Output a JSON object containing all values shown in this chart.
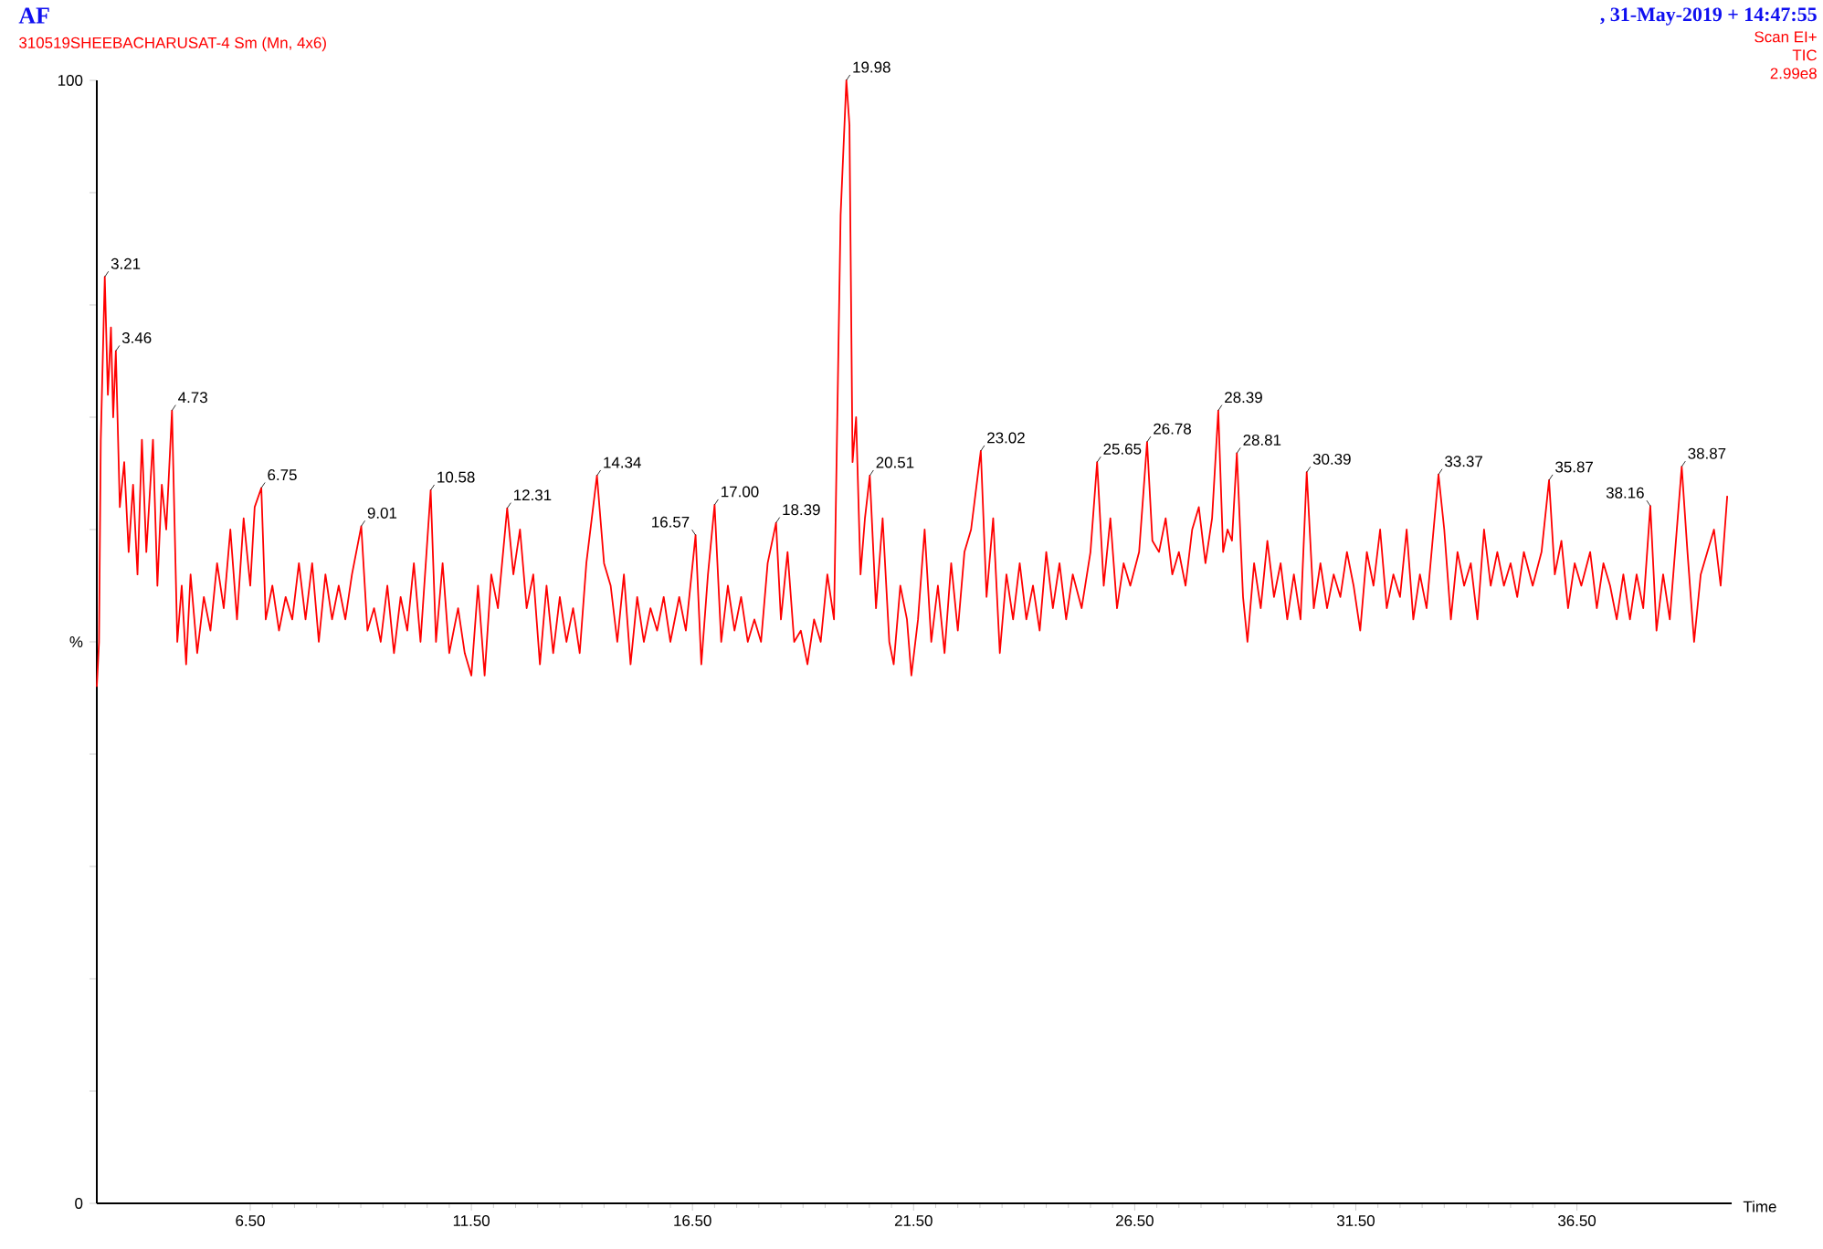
{
  "chart_data": {
    "type": "line",
    "title": "AF",
    "subtitle": "310519SHEEBACHARUSAT-4 Sm (Mn, 4x6)",
    "xlabel": "Time",
    "color": "#ff0000",
    "x": [
      3.03,
      3.08,
      3.12,
      3.21,
      3.28,
      3.35,
      3.4,
      3.46,
      3.55,
      3.65,
      3.75,
      3.85,
      3.95,
      4.05,
      4.15,
      4.3,
      4.4,
      4.5,
      4.6,
      4.73,
      4.85,
      4.95,
      5.05,
      5.15,
      5.3,
      5.45,
      5.6,
      5.75,
      5.9,
      6.05,
      6.2,
      6.35,
      6.5,
      6.6,
      6.75,
      6.85,
      7.0,
      7.15,
      7.3,
      7.45,
      7.6,
      7.75,
      7.9,
      8.05,
      8.2,
      8.35,
      8.5,
      8.65,
      8.8,
      9.01,
      9.15,
      9.3,
      9.45,
      9.6,
      9.75,
      9.9,
      10.05,
      10.2,
      10.35,
      10.58,
      10.7,
      10.85,
      11.0,
      11.2,
      11.35,
      11.5,
      11.65,
      11.8,
      11.95,
      12.1,
      12.31,
      12.45,
      12.6,
      12.75,
      12.9,
      13.05,
      13.2,
      13.35,
      13.5,
      13.65,
      13.8,
      13.95,
      14.1,
      14.34,
      14.5,
      14.65,
      14.8,
      14.95,
      15.1,
      15.25,
      15.4,
      15.55,
      15.7,
      15.85,
      16.0,
      16.2,
      16.35,
      16.57,
      16.7,
      16.85,
      17.0,
      17.15,
      17.3,
      17.45,
      17.6,
      17.75,
      17.9,
      18.05,
      18.2,
      18.39,
      18.5,
      18.65,
      18.8,
      18.95,
      19.1,
      19.25,
      19.4,
      19.55,
      19.7,
      19.85,
      19.98,
      20.05,
      20.12,
      20.2,
      20.3,
      20.4,
      20.51,
      20.65,
      20.8,
      20.95,
      21.05,
      21.2,
      21.35,
      21.45,
      21.6,
      21.75,
      21.9,
      22.05,
      22.2,
      22.35,
      22.5,
      22.65,
      22.8,
      23.02,
      23.15,
      23.3,
      23.45,
      23.6,
      23.75,
      23.9,
      24.05,
      24.2,
      24.35,
      24.5,
      24.65,
      24.8,
      24.95,
      25.1,
      25.3,
      25.5,
      25.65,
      25.8,
      25.95,
      26.1,
      26.25,
      26.4,
      26.6,
      26.78,
      26.9,
      27.05,
      27.2,
      27.35,
      27.5,
      27.65,
      27.8,
      27.95,
      28.1,
      28.25,
      28.39,
      28.5,
      28.6,
      28.7,
      28.81,
      28.95,
      29.05,
      29.2,
      29.35,
      29.5,
      29.65,
      29.8,
      29.95,
      30.1,
      30.25,
      30.39,
      30.55,
      30.7,
      30.85,
      31.0,
      31.15,
      31.3,
      31.45,
      31.6,
      31.75,
      31.9,
      32.05,
      32.2,
      32.35,
      32.5,
      32.65,
      32.8,
      32.95,
      33.1,
      33.37,
      33.5,
      33.65,
      33.8,
      33.95,
      34.1,
      34.25,
      34.4,
      34.55,
      34.7,
      34.85,
      35.0,
      35.15,
      35.3,
      35.5,
      35.7,
      35.87,
      36.0,
      36.15,
      36.3,
      36.45,
      36.6,
      36.8,
      36.95,
      37.1,
      37.25,
      37.4,
      37.55,
      37.7,
      37.85,
      38.0,
      38.16,
      38.3,
      38.45,
      38.6,
      38.87,
      39.0,
      39.15,
      39.3,
      39.45,
      39.6,
      39.75,
      39.9
    ],
    "values": [
      46,
      50,
      68,
      82.5,
      72,
      78,
      70,
      75.9,
      62,
      66,
      58,
      64,
      56,
      68,
      58,
      68,
      55,
      64,
      60,
      70.6,
      50,
      55,
      48,
      56,
      49,
      54,
      51,
      57,
      53,
      60,
      52,
      61,
      55,
      62,
      63.7,
      52,
      55,
      51,
      54,
      52,
      57,
      52,
      57,
      50,
      56,
      52,
      55,
      52,
      56,
      60.3,
      51,
      53,
      50,
      55,
      49,
      54,
      51,
      57,
      50,
      63.5,
      50,
      57,
      49,
      53,
      49,
      47,
      55,
      47,
      56,
      53,
      61.9,
      56,
      60,
      53,
      56,
      48,
      55,
      49,
      54,
      50,
      53,
      49,
      57,
      64.8,
      57,
      55,
      50,
      56,
      48,
      54,
      50,
      53,
      51,
      54,
      50,
      54,
      51,
      59.5,
      48,
      56,
      62.2,
      50,
      55,
      51,
      54,
      50,
      52,
      50,
      57,
      60.6,
      52,
      58,
      50,
      51,
      48,
      52,
      50,
      56,
      52,
      88,
      100,
      96,
      66,
      70,
      56,
      61,
      64.8,
      53,
      61,
      50,
      48,
      55,
      52,
      47,
      52,
      60,
      50,
      55,
      49,
      57,
      51,
      58,
      60,
      67,
      54,
      61,
      49,
      56,
      52,
      57,
      52,
      55,
      51,
      58,
      53,
      57,
      52,
      56,
      53,
      58,
      66,
      55,
      61,
      53,
      57,
      55,
      58,
      67.8,
      59,
      58,
      61,
      56,
      58,
      55,
      60,
      62,
      57,
      61,
      70.6,
      58,
      60,
      59,
      66.8,
      54,
      50,
      57,
      53,
      59,
      54,
      57,
      52,
      56,
      52,
      65.1,
      53,
      57,
      53,
      56,
      54,
      58,
      55,
      51,
      58,
      55,
      60,
      53,
      56,
      54,
      60,
      52,
      56,
      53,
      64.9,
      60,
      52,
      58,
      55,
      57,
      52,
      60,
      55,
      58,
      55,
      57,
      54,
      58,
      55,
      58,
      64.4,
      56,
      59,
      53,
      57,
      55,
      58,
      53,
      57,
      55,
      52,
      56,
      52,
      56,
      53,
      62.1,
      51,
      56,
      52,
      65.6,
      58,
      50,
      56,
      58,
      60,
      55,
      63
    ],
    "xlim": [
      3.03,
      40.0
    ],
    "ylim": [
      0,
      100
    ],
    "xticks": [
      {
        "value": 6.5,
        "label": "6.50"
      },
      {
        "value": 11.5,
        "label": "11.50"
      },
      {
        "value": 16.5,
        "label": "16.50"
      },
      {
        "value": 21.5,
        "label": "21.50"
      },
      {
        "value": 26.5,
        "label": "26.50"
      },
      {
        "value": 31.5,
        "label": "31.50"
      },
      {
        "value": 36.5,
        "label": "36.50"
      }
    ],
    "yticks": [
      0,
      {
        "value": 10,
        "label": null
      },
      {
        "value": 20,
        "label": null
      },
      {
        "value": 30,
        "label": null
      },
      {
        "value": 40,
        "label": null
      },
      {
        "value": 50,
        "label": "%"
      },
      {
        "value": 60,
        "label": null
      },
      {
        "value": 70,
        "label": null
      },
      {
        "value": 80,
        "label": null
      },
      {
        "value": 90,
        "label": null
      },
      100
    ],
    "annotations": [
      ", 31-May-2019 + 14:47:55",
      "Scan EI+",
      "TIC",
      "2.99e8",
      {
        "text": "3.21",
        "x": 3.21,
        "y": 82.5
      },
      {
        "text": "3.46",
        "x": 3.46,
        "y": 75.9
      },
      {
        "text": "4.73",
        "x": 4.73,
        "y": 70.6
      },
      {
        "text": "6.75",
        "x": 6.75,
        "y": 63.7
      },
      {
        "text": "9.01",
        "x": 9.01,
        "y": 60.3
      },
      {
        "text": "10.58",
        "x": 10.58,
        "y": 63.5
      },
      {
        "text": "12.31",
        "x": 12.31,
        "y": 61.9
      },
      {
        "text": "14.34",
        "x": 14.34,
        "y": 64.8
      },
      {
        "text": "16.57",
        "x": 16.57,
        "y": 59.5
      },
      {
        "text": "17.00",
        "x": 17.0,
        "y": 62.2
      },
      {
        "text": "18.39",
        "x": 18.39,
        "y": 60.6
      },
      {
        "text": "19.98",
        "x": 19.98,
        "y": 100
      },
      {
        "text": "20.51",
        "x": 20.51,
        "y": 64.8
      },
      {
        "text": "23.02",
        "x": 23.02,
        "y": 67
      },
      {
        "text": "25.65",
        "x": 25.65,
        "y": 66
      },
      {
        "text": "26.78",
        "x": 26.78,
        "y": 67.8
      },
      {
        "text": "28.39",
        "x": 28.39,
        "y": 70.6
      },
      {
        "text": "28.81",
        "x": 28.81,
        "y": 66.8
      },
      {
        "text": "30.39",
        "x": 30.39,
        "y": 65.1
      },
      {
        "text": "33.37",
        "x": 33.37,
        "y": 64.9
      },
      {
        "text": "35.87",
        "x": 35.87,
        "y": 64.4
      },
      {
        "text": "38.16",
        "x": 38.16,
        "y": 62.1
      },
      {
        "text": "38.87",
        "x": 38.87,
        "y": 65.6
      }
    ]
  }
}
